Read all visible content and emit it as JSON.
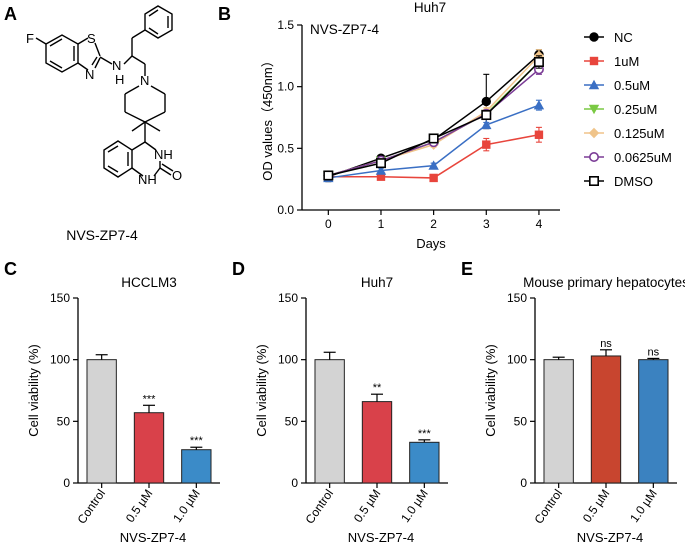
{
  "panels": {
    "A": {
      "letter": "A",
      "compound_label": "NVS-ZP7-4",
      "atoms": {
        "F": "F",
        "S": "S",
        "N": "N",
        "NH": "N",
        "H": "H",
        "N2": "N",
        "NH2": "NH",
        "NH3": "NH",
        "O": "O"
      }
    }
  },
  "chart_data": [
    {
      "panel": "B",
      "type": "line",
      "title": "Huh7",
      "subtitle": "NVS-ZP7-4",
      "xlabel": "Days",
      "ylabel": "OD values（450nm）",
      "x": [
        0,
        1,
        2,
        3,
        4
      ],
      "xlim": [
        -0.5,
        4.4
      ],
      "ylim": [
        0,
        1.5
      ],
      "yticks": [
        "0.0",
        "0.5",
        "1.0",
        "1.5"
      ],
      "xticks": [
        "0",
        "1",
        "2",
        "3",
        "4"
      ],
      "legend_position": "right",
      "series": [
        {
          "name": "NC",
          "values": [
            0.27,
            0.42,
            0.57,
            0.88,
            1.26
          ],
          "errors": [
            0.04,
            0.02,
            0.02,
            0.22,
            0.04
          ],
          "color": "#000000",
          "marker": "circle"
        },
        {
          "name": "1uM",
          "values": [
            0.27,
            0.27,
            0.26,
            0.53,
            0.61
          ],
          "errors": [
            0.03,
            0.02,
            0.02,
            0.05,
            0.06
          ],
          "color": "#e8453c",
          "marker": "square"
        },
        {
          "name": "0.5uM",
          "values": [
            0.26,
            0.32,
            0.36,
            0.69,
            0.85
          ],
          "errors": [
            0.02,
            0.02,
            0.02,
            0.02,
            0.04
          ],
          "color": "#3a6fc4",
          "marker": "triangle-up"
        },
        {
          "name": "0.25uM",
          "values": [
            0.28,
            0.4,
            0.55,
            0.78,
            1.2
          ],
          "errors": [
            0.02,
            0.02,
            0.02,
            0.03,
            0.04
          ],
          "color": "#7ac943",
          "marker": "triangle-down"
        },
        {
          "name": "0.125uM",
          "values": [
            0.28,
            0.4,
            0.53,
            0.8,
            1.25
          ],
          "errors": [
            0.02,
            0.02,
            0.02,
            0.03,
            0.05
          ],
          "color": "#f0c48a",
          "marker": "diamond"
        },
        {
          "name": "0.0625uM",
          "values": [
            0.28,
            0.4,
            0.55,
            0.78,
            1.14
          ],
          "errors": [
            0.02,
            0.02,
            0.02,
            0.03,
            0.04
          ],
          "color": "#7b3c96",
          "marker": "circle-open"
        },
        {
          "name": "DMSO",
          "values": [
            0.28,
            0.38,
            0.58,
            0.77,
            1.2
          ],
          "errors": [
            0.02,
            0.02,
            0.02,
            0.03,
            0.05
          ],
          "color": "#000000",
          "marker": "square-open"
        }
      ]
    },
    {
      "panel": "C",
      "type": "bar",
      "title": "HCCLM3",
      "xlabel": "NVS-ZP7-4",
      "ylabel": "Cell viability (%)",
      "categories": [
        "Control",
        "0.5 µM",
        "1.0 µM"
      ],
      "values": [
        100,
        57,
        27
      ],
      "errors": [
        4,
        6,
        2
      ],
      "significance": [
        "",
        "***",
        "***"
      ],
      "colors": [
        "#d3d3d3",
        "#d9414a",
        "#3b8bc8"
      ],
      "ylim": [
        0,
        150
      ],
      "yticks": [
        "0",
        "50",
        "100",
        "150"
      ]
    },
    {
      "panel": "D",
      "type": "bar",
      "title": "Huh7",
      "xlabel": "NVS-ZP7-4",
      "ylabel": "Cell viability (%)",
      "categories": [
        "Control",
        "0.5 µM",
        "1.0 µM"
      ],
      "values": [
        100,
        66,
        33
      ],
      "errors": [
        6,
        6,
        2
      ],
      "significance": [
        "",
        "**",
        "***"
      ],
      "colors": [
        "#d3d3d3",
        "#d9414a",
        "#3b8bc8"
      ],
      "ylim": [
        0,
        150
      ],
      "yticks": [
        "0",
        "50",
        "100",
        "150"
      ]
    },
    {
      "panel": "E",
      "type": "bar",
      "title": "Mouse primary hepatocytes",
      "xlabel": "NVS-ZP7-4",
      "ylabel": "Cell viability (%)",
      "categories": [
        "Control",
        "0.5 µM",
        "1.0 µM"
      ],
      "values": [
        100,
        103,
        100
      ],
      "errors": [
        2,
        5,
        1
      ],
      "significance": [
        "",
        "ns",
        "ns"
      ],
      "colors": [
        "#d3d3d3",
        "#c8452f",
        "#3b82c0"
      ],
      "ylim": [
        0,
        150
      ],
      "yticks": [
        "0",
        "50",
        "100",
        "150"
      ]
    }
  ],
  "panel_letters": {
    "B": "B",
    "C": "C",
    "D": "D",
    "E": "E"
  }
}
